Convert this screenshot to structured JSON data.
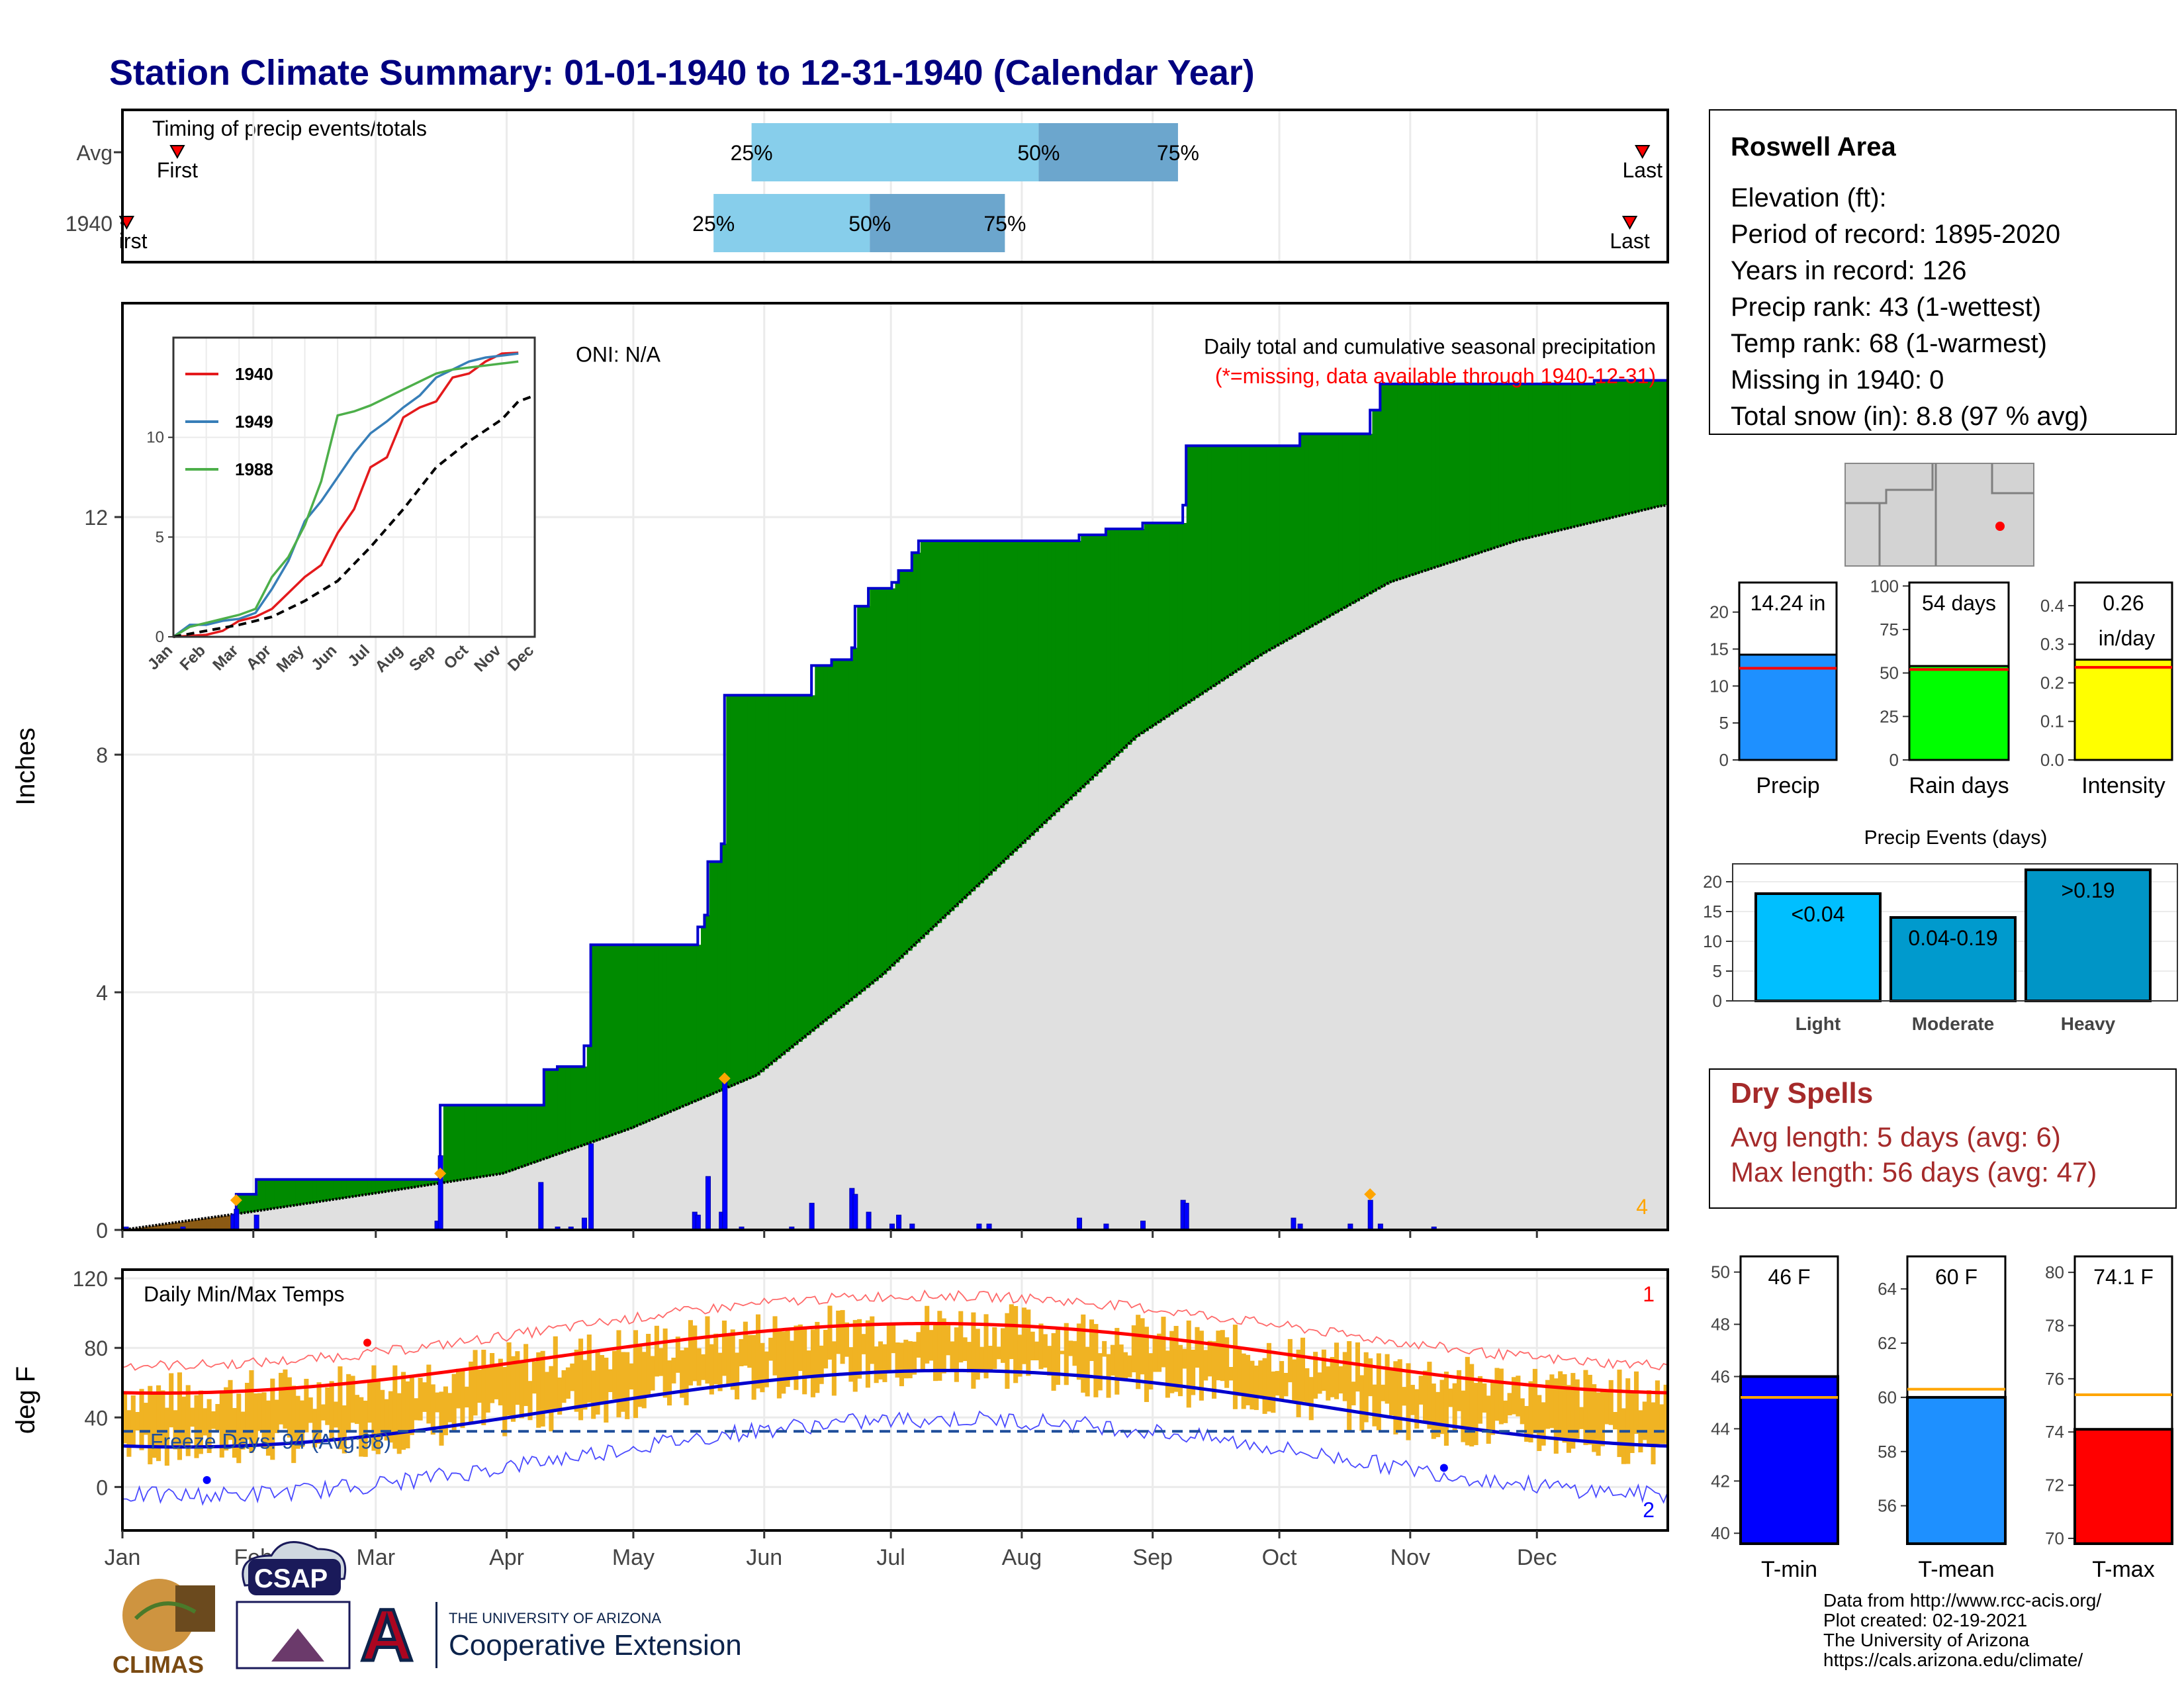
{
  "title": "Station Climate Summary: 01-01-1940 to 12-31-1940 (Calendar Year)",
  "months": [
    "Jan",
    "Feb",
    "Mar",
    "Apr",
    "May",
    "Jun",
    "Jul",
    "Aug",
    "Sep",
    "Oct",
    "Nov",
    "Dec"
  ],
  "timing": {
    "label": "Timing of precip events/totals",
    "rows": [
      {
        "label": "Avg",
        "first_label": "First",
        "last_label": "Last",
        "first_day": 13,
        "last_day": 360,
        "p25_day": 149,
        "p50_day": 217,
        "p75_day": 250
      },
      {
        "label": "1940",
        "first_label": "First",
        "last_label": "Last",
        "first_day": 1,
        "last_day": 357,
        "p25_day": 140,
        "p50_day": 177,
        "p75_day": 209
      }
    ],
    "pct_labels": [
      "25%",
      "50%",
      "75%"
    ],
    "colors": {
      "lower": "#87ceeb",
      "upper": "#6ca6cd"
    }
  },
  "precip_panel": {
    "ylabel": "Inches",
    "yticks": [
      0,
      4,
      8,
      12
    ],
    "ylim": [
      0,
      15.6
    ],
    "oni": "ONI: N/A",
    "note1": "Daily total and cumulative seasonal precipitation",
    "note2": "(*=missing, data available through 1940-12-31)",
    "corner_count": "4",
    "cumulative_1940": [
      [
        0,
        0
      ],
      [
        33,
        0.25
      ],
      [
        34,
        0.6
      ],
      [
        40,
        0.85
      ],
      [
        94,
        0.85
      ],
      [
        95,
        2.1
      ],
      [
        125,
        2.1
      ],
      [
        126,
        2.7
      ],
      [
        130,
        2.75
      ],
      [
        134,
        2.75
      ],
      [
        138,
        3.1
      ],
      [
        140,
        4.8
      ],
      [
        171,
        4.8
      ],
      [
        172,
        5.1
      ],
      [
        174,
        5.3
      ],
      [
        175,
        6.2
      ],
      [
        179,
        6.5
      ],
      [
        180,
        9.0
      ],
      [
        195,
        9.0
      ],
      [
        200,
        9.0
      ],
      [
        206,
        9.5
      ],
      [
        212,
        9.6
      ],
      [
        218,
        9.8
      ],
      [
        219,
        10.5
      ],
      [
        223,
        10.8
      ],
      [
        230,
        10.9
      ],
      [
        232,
        11.1
      ],
      [
        236,
        11.4
      ],
      [
        238,
        11.6
      ],
      [
        256,
        11.6
      ],
      [
        257,
        11.6
      ],
      [
        258,
        11.6
      ],
      [
        259,
        11.6
      ],
      [
        286,
        11.7
      ],
      [
        294,
        11.8
      ],
      [
        305,
        11.9
      ],
      [
        317,
        12.2
      ],
      [
        318,
        13.2
      ],
      [
        350,
        13.2
      ],
      [
        352,
        13.4
      ],
      [
        367,
        13.4
      ],
      [
        373,
        13.8
      ],
      [
        376,
        14.24
      ],
      [
        400,
        14.24
      ],
      [
        440,
        14.3
      ],
      [
        462,
        14.3
      ]
    ],
    "average_cum": [
      [
        0,
        0
      ],
      [
        30,
        0.3
      ],
      [
        60,
        0.62
      ],
      [
        90,
        0.95
      ],
      [
        120,
        1.7
      ],
      [
        150,
        2.6
      ],
      [
        180,
        4.3
      ],
      [
        210,
        6.3
      ],
      [
        240,
        8.3
      ],
      [
        270,
        9.7
      ],
      [
        300,
        10.9
      ],
      [
        330,
        11.6
      ],
      [
        365,
        12.2
      ]
    ],
    "daily_bars": [
      [
        1,
        0.05
      ],
      [
        18,
        0.05
      ],
      [
        33,
        0.25
      ],
      [
        34,
        0.35
      ],
      [
        40,
        0.25
      ],
      [
        94,
        0.15
      ],
      [
        95,
        1.25
      ],
      [
        125,
        0.8
      ],
      [
        130,
        0.05
      ],
      [
        134,
        0.05
      ],
      [
        138,
        0.2
      ],
      [
        140,
        1.45
      ],
      [
        171,
        0.3
      ],
      [
        172,
        0.25
      ],
      [
        175,
        0.9
      ],
      [
        179,
        0.3
      ],
      [
        180,
        2.55
      ],
      [
        185,
        0.05
      ],
      [
        200,
        0.05
      ],
      [
        206,
        0.45
      ],
      [
        218,
        0.7
      ],
      [
        219,
        0.6
      ],
      [
        223,
        0.3
      ],
      [
        230,
        0.1
      ],
      [
        232,
        0.25
      ],
      [
        236,
        0.1
      ],
      [
        256,
        0.1
      ],
      [
        259,
        0.1
      ],
      [
        286,
        0.2
      ],
      [
        294,
        0.1
      ],
      [
        305,
        0.15
      ],
      [
        317,
        0.5
      ],
      [
        318,
        0.45
      ],
      [
        350,
        0.2
      ],
      [
        352,
        0.1
      ],
      [
        367,
        0.1
      ],
      [
        373,
        0.5
      ],
      [
        376,
        0.1
      ],
      [
        392,
        0.05
      ]
    ],
    "fill_colors": {
      "above": "#008b00",
      "below": "#8b5a14",
      "avg": "#e0e0e0"
    },
    "extremes_markers": [
      [
        34,
        0.5
      ],
      [
        95,
        0.95
      ],
      [
        180,
        2.55
      ],
      [
        373,
        0.6
      ]
    ]
  },
  "inset": {
    "legend": [
      "1940",
      "1949",
      "1988"
    ],
    "colors": [
      "#e41a1c",
      "#377eb8",
      "#4daf4a"
    ],
    "yticks": [
      0,
      5,
      10
    ],
    "months": [
      "Jan",
      "Feb",
      "Mar",
      "Apr",
      "May",
      "Jun",
      "Jul",
      "Aug",
      "Sep",
      "Oct",
      "Nov",
      "Dec"
    ],
    "series": [
      {
        "name": "1940",
        "points": [
          [
            0,
            0
          ],
          [
            1,
            0.05
          ],
          [
            2,
            0.1
          ],
          [
            3,
            0.3
          ],
          [
            4,
            0.8
          ],
          [
            5,
            1.0
          ],
          [
            6,
            1.4
          ],
          [
            7,
            2.2
          ],
          [
            8,
            3.0
          ],
          [
            9,
            3.6
          ],
          [
            10,
            5.2
          ],
          [
            11,
            6.4
          ],
          [
            12,
            8.5
          ],
          [
            13,
            9.0
          ],
          [
            14,
            11.0
          ],
          [
            15,
            11.5
          ],
          [
            16,
            11.8
          ],
          [
            17,
            13.0
          ],
          [
            18,
            13.2
          ],
          [
            19,
            13.8
          ],
          [
            20,
            14.2
          ],
          [
            21,
            14.24
          ]
        ]
      },
      {
        "name": "1949",
        "points": [
          [
            0,
            0
          ],
          [
            1,
            0.6
          ],
          [
            2,
            0.6
          ],
          [
            3,
            0.8
          ],
          [
            4,
            0.9
          ],
          [
            5,
            1.2
          ],
          [
            6,
            2.4
          ],
          [
            7,
            3.8
          ],
          [
            8,
            5.8
          ],
          [
            9,
            6.8
          ],
          [
            10,
            8.0
          ],
          [
            11,
            9.2
          ],
          [
            12,
            10.2
          ],
          [
            13,
            10.8
          ],
          [
            14,
            11.5
          ],
          [
            15,
            12.1
          ],
          [
            16,
            13.0
          ],
          [
            17,
            13.4
          ],
          [
            18,
            13.8
          ],
          [
            19,
            14.0
          ],
          [
            20,
            14.1
          ],
          [
            21,
            14.2
          ]
        ]
      },
      {
        "name": "1988",
        "points": [
          [
            0,
            0
          ],
          [
            1,
            0.5
          ],
          [
            2,
            0.7
          ],
          [
            3,
            0.9
          ],
          [
            4,
            1.1
          ],
          [
            5,
            1.4
          ],
          [
            6,
            3.0
          ],
          [
            7,
            4.0
          ],
          [
            8,
            5.6
          ],
          [
            9,
            7.8
          ],
          [
            10,
            11.1
          ],
          [
            11,
            11.3
          ],
          [
            12,
            11.6
          ],
          [
            13,
            12.0
          ],
          [
            14,
            12.4
          ],
          [
            15,
            12.8
          ],
          [
            16,
            13.2
          ],
          [
            17,
            13.4
          ],
          [
            18,
            13.5
          ],
          [
            19,
            13.6
          ],
          [
            20,
            13.7
          ],
          [
            21,
            13.8
          ]
        ]
      },
      {
        "name": "Average",
        "points": [
          [
            0,
            0
          ],
          [
            2,
            0.3
          ],
          [
            4,
            0.6
          ],
          [
            6,
            1.0
          ],
          [
            8,
            1.8
          ],
          [
            10,
            2.8
          ],
          [
            12,
            4.5
          ],
          [
            14,
            6.4
          ],
          [
            16,
            8.5
          ],
          [
            18,
            9.8
          ],
          [
            20,
            10.9
          ],
          [
            21,
            11.8
          ],
          [
            22,
            12.1
          ]
        ]
      }
    ]
  },
  "temp_panel": {
    "ylabel": "deg F",
    "title": "Daily Min/Max Temps",
    "yticks": [
      0,
      40,
      80,
      120
    ],
    "ylim": [
      -25,
      125
    ],
    "freeze": "Freeze Days: 94 (Avg:98)",
    "freeze_temp": 32,
    "record_high_count": "1",
    "record_low_count": "2"
  },
  "station": {
    "name": "Roswell Area",
    "lines": [
      "Elevation (ft):",
      "Period of record: 1895-2020",
      "Years in record: 126",
      "Precip rank: 43 (1-wettest)",
      "Temp rank: 68 (1-warmest)",
      "Missing in 1940: 0",
      "Total snow (in): 8.8 (97 % avg)"
    ]
  },
  "mini_bars": [
    {
      "label": "Precip",
      "value_text": "14.24 in",
      "value": 14.24,
      "avg": 12.4,
      "ymax": 24,
      "yticks": [
        0,
        5,
        10,
        15,
        20
      ],
      "color": "#1e90ff"
    },
    {
      "label": "Rain days",
      "value_text": "54 days",
      "value": 54,
      "avg": 52,
      "ymax": 102,
      "yticks": [
        0,
        25,
        50,
        75,
        100
      ],
      "color": "#00ff00"
    },
    {
      "label": "Intensity",
      "value_text": "0.26",
      "value_text2": "in/day",
      "value": 0.26,
      "avg": 0.24,
      "ymax": 0.46,
      "yticks": [
        "0.0",
        "0.1",
        "0.2",
        "0.3",
        "0.4"
      ],
      "color": "#ffff00"
    }
  ],
  "events": {
    "title": "Precip Events (days)",
    "categories": [
      "Light",
      "Moderate",
      "Heavy"
    ],
    "ranges": [
      "<0.04",
      "0.04-0.19",
      ">0.19"
    ],
    "values": [
      18,
      14,
      22
    ],
    "yticks": [
      0,
      5,
      10,
      15,
      20
    ],
    "ymax": 23,
    "colors": [
      "#00bfff",
      "#009acd",
      "#0095c6"
    ]
  },
  "dry": {
    "title": "Dry Spells",
    "avg_line": "Avg length: 5 days (avg: 6)",
    "max_line": "Max length: 56 days (avg: 47)",
    "color": "#a52a2a"
  },
  "temp_bars": [
    {
      "label": "T-min",
      "value_text": "46 F",
      "value": 46,
      "avg": 45.2,
      "ymin": 39.6,
      "ymax": 50.6,
      "yticks": [
        40,
        42,
        44,
        46,
        48,
        50
      ],
      "color": "#0000ff"
    },
    {
      "label": "T-mean",
      "value_text": "60 F",
      "value": 60,
      "avg": 60.3,
      "ymin": 54.6,
      "ymax": 65.2,
      "yticks": [
        56,
        58,
        60,
        62,
        64
      ],
      "color": "#1e90ff"
    },
    {
      "label": "T-max",
      "value_text": "74.1 F",
      "value": 74.1,
      "avg": 75.4,
      "ymin": 69.8,
      "ymax": 80.6,
      "yticks": [
        70,
        72,
        74,
        76,
        78,
        80
      ],
      "color": "#ff0000"
    }
  ],
  "credits": [
    "Data from http://www.rcc-acis.org/",
    "Plot created: 02-19-2021",
    "The University of Arizona",
    "https://cals.arizona.edu/climate/"
  ],
  "logos": {
    "climas": "CLIMAS",
    "csap": "CSAP",
    "ua_small": "THE UNIVERSITY OF ARIZONA",
    "ua_big": "Cooperative Extension",
    "ua_letter": "A"
  }
}
